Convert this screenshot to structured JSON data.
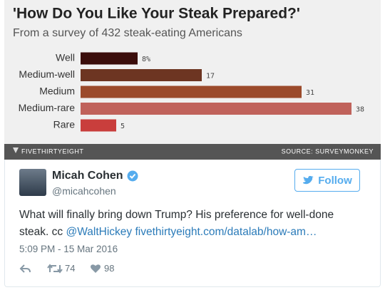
{
  "chart_data": {
    "type": "bar",
    "orientation": "horizontal",
    "title": "'How Do You Like Your Steak Prepared?'",
    "subtitle": "From a survey of 432 steak-eating Americans",
    "categories": [
      "Well",
      "Medium-well",
      "Medium",
      "Medium-rare",
      "Rare"
    ],
    "values": [
      8,
      17,
      31,
      38,
      5
    ],
    "value_labels": [
      "8%",
      "17",
      "31",
      "38",
      "5"
    ],
    "colors": [
      "#3a0d0b",
      "#6d3522",
      "#9b4a2b",
      "#c0625b",
      "#c93e3c"
    ],
    "footer_left": "FIVETHIRTYEIGHT",
    "footer_right": "SOURCE: SURVEYMONKEY"
  },
  "tweet": {
    "name": "Micah Cohen",
    "handle": "@micahcohen",
    "follow": "Follow",
    "text": [
      "What will finally bring down Trump? His preference for well-done steak. cc ",
      "@WaltHickey",
      "fivethirtyeight.com/datalab/how-am…"
    ],
    "date": "5:09 PM - 15 Mar 2016",
    "retweets": "74",
    "likes": "98"
  }
}
